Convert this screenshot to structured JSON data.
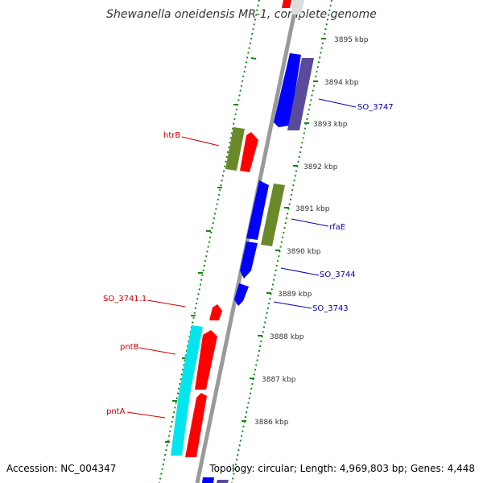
{
  "title": "Shewanella oneidensis MR-1, complete genome",
  "accession": "Accession: NC_004347",
  "summary": "Topology: circular; Length: 4,969,803 bp; Genes: 4,448",
  "ticks": [
    "3895 kbp",
    "3894 kbp",
    "3893 kbp",
    "3892 kbp",
    "3891 kbp",
    "3890 kbp",
    "3889 kbp",
    "3888 kbp",
    "3887 kbp",
    "3886 kbp"
  ],
  "gene_labels_left": [
    "htrB",
    "SO_3741.1",
    "pntB",
    "pntA"
  ],
  "gene_labels_right": [
    "SO_3747",
    "rfaE",
    "SO_3744",
    "SO_3743"
  ],
  "colors": {
    "red": "#ff0000",
    "blue": "#0000ff",
    "purple": "#5a4a9a",
    "olive": "#6a8a2a",
    "cyan": "#00e5ee",
    "dotted": "#118811",
    "backbone": "#999999"
  }
}
